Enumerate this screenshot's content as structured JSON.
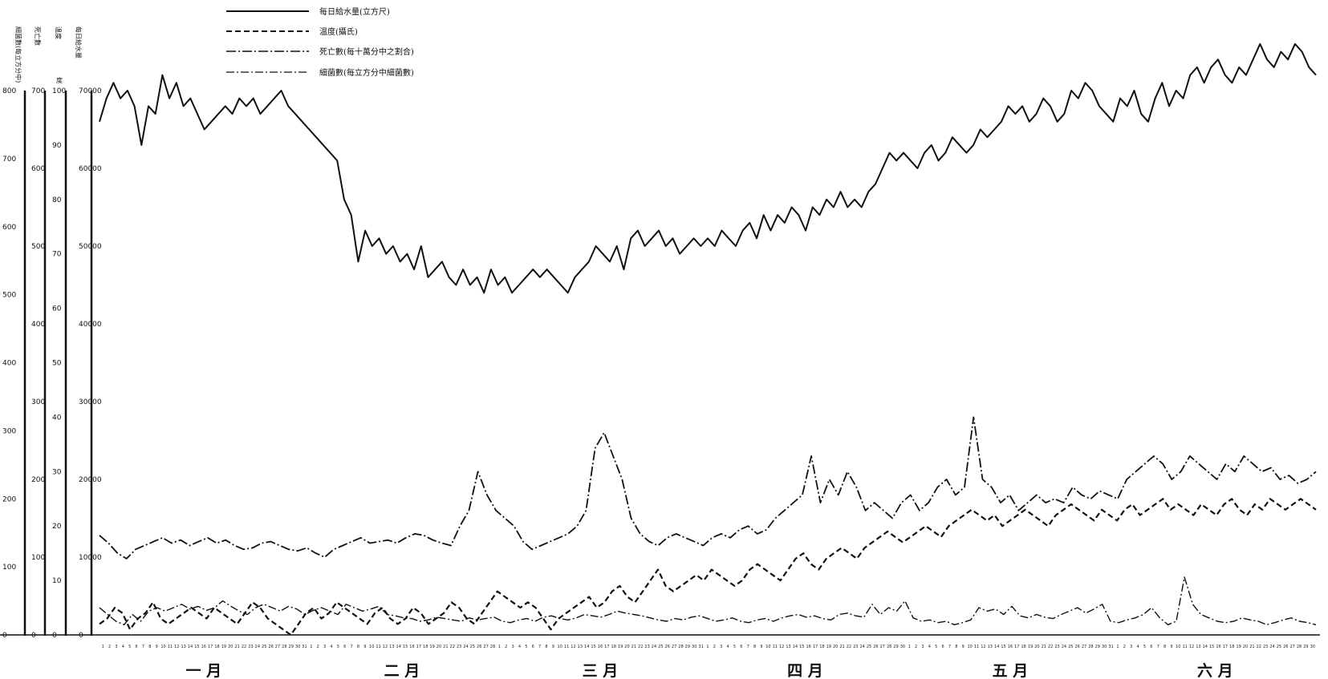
{
  "chart_data": {
    "type": "line",
    "title": "",
    "xlabel": "",
    "ylabel": "",
    "grid": false,
    "legend_position": "top-left",
    "month_labels": [
      "一 月",
      "二 月",
      "三 月",
      "四 月",
      "五 月",
      "六 月"
    ],
    "days_per_month": [
      31,
      28,
      31,
      30,
      31,
      30
    ],
    "y_axes": [
      {
        "title": "細菌數(每立方分中)",
        "ticks": [
          "800",
          "700",
          "600",
          "500",
          "400",
          "300",
          "200",
          "100",
          "0"
        ]
      },
      {
        "title": "死亡數",
        "ticks": [
          "700",
          "600",
          "500",
          "400",
          "300",
          "200",
          "100",
          "0"
        ]
      },
      {
        "title": "溫度",
        "unit": "度",
        "ticks": [
          "100",
          "90",
          "80",
          "70",
          "60",
          "50",
          "40",
          "30",
          "20",
          "10",
          "0"
        ]
      },
      {
        "title": "每日給水量",
        "ticks": [
          "70000",
          "60000",
          "50000",
          "40000",
          "30000",
          "20000",
          "10000",
          "0"
        ]
      }
    ],
    "series": [
      {
        "name": "每日給水量(立方尺)",
        "style": "solid",
        "axis": 3,
        "values": [
          66000,
          69000,
          71000,
          69000,
          70000,
          68000,
          63000,
          68000,
          67000,
          72000,
          69000,
          71000,
          68000,
          69000,
          67000,
          65000,
          66000,
          67000,
          68000,
          67000,
          69000,
          68000,
          69000,
          67000,
          68000,
          69000,
          70000,
          68000,
          67000,
          66000,
          65000,
          64000,
          63000,
          62000,
          61000,
          56000,
          54000,
          48000,
          52000,
          50000,
          51000,
          49000,
          50000,
          48000,
          49000,
          47000,
          50000,
          46000,
          47000,
          48000,
          46000,
          45000,
          47000,
          45000,
          46000,
          44000,
          47000,
          45000,
          46000,
          44000,
          45000,
          46000,
          47000,
          46000,
          47000,
          46000,
          45000,
          44000,
          46000,
          47000,
          48000,
          50000,
          49000,
          48000,
          50000,
          47000,
          51000,
          52000,
          50000,
          51000,
          52000,
          50000,
          51000,
          49000,
          50000,
          51000,
          50000,
          51000,
          50000,
          52000,
          51000,
          50000,
          52000,
          53000,
          51000,
          54000,
          52000,
          54000,
          53000,
          55000,
          54000,
          52000,
          55000,
          54000,
          56000,
          55000,
          57000,
          55000,
          56000,
          55000,
          57000,
          58000,
          60000,
          62000,
          61000,
          62000,
          61000,
          60000,
          62000,
          63000,
          61000,
          62000,
          64000,
          63000,
          62000,
          63000,
          65000,
          64000,
          65000,
          66000,
          68000,
          67000,
          68000,
          66000,
          67000,
          69000,
          68000,
          66000,
          67000,
          70000,
          69000,
          71000,
          70000,
          68000,
          67000,
          66000,
          69000,
          68000,
          70000,
          67000,
          66000,
          69000,
          71000,
          68000,
          70000,
          69000,
          72000,
          73000,
          71000,
          73000,
          74000,
          72000,
          71000,
          73000,
          72000,
          74000,
          76000,
          74000,
          73000,
          75000,
          74000,
          76000,
          75000,
          73000,
          72000
        ]
      },
      {
        "name": "温度(攝氏)",
        "style": "dashed",
        "axis": 2,
        "values": [
          2,
          3,
          5,
          4,
          1,
          3,
          4,
          6,
          3,
          2,
          3,
          4,
          5,
          4,
          3,
          5,
          4,
          3,
          2,
          4,
          6,
          5,
          3,
          2,
          1,
          0,
          2,
          4,
          5,
          3,
          4,
          6,
          5,
          4,
          3,
          2,
          4,
          5,
          3,
          2,
          3,
          5,
          4,
          2,
          3,
          4,
          6,
          5,
          3,
          2,
          4,
          6,
          8,
          7,
          6,
          5,
          6,
          5,
          3,
          1,
          3,
          4,
          5,
          6,
          7,
          5,
          6,
          8,
          9,
          7,
          6,
          8,
          10,
          12,
          9,
          8,
          9,
          10,
          11,
          10,
          12,
          11,
          10,
          9,
          10,
          12,
          13,
          12,
          11,
          10,
          12,
          14,
          15,
          13,
          12,
          14,
          15,
          16,
          15,
          14,
          16,
          17,
          18,
          19,
          18,
          17,
          18,
          19,
          20,
          19,
          18,
          20,
          21,
          22,
          23,
          22,
          21,
          22,
          20,
          21,
          22,
          23,
          22,
          21,
          20,
          22,
          23,
          24,
          23,
          22,
          21,
          23,
          22,
          21,
          23,
          24,
          22,
          23,
          24,
          25,
          23,
          24,
          23,
          22,
          24,
          23,
          22,
          24,
          25,
          23,
          22,
          24,
          23,
          25,
          24,
          23,
          24,
          25,
          24,
          23
        ]
      },
      {
        "name": "死亡數(每十萬分中之割合)",
        "style": "dashdot",
        "axis": 1,
        "values": [
          128,
          118,
          105,
          98,
          110,
          115,
          120,
          125,
          118,
          122,
          115,
          120,
          125,
          118,
          122,
          115,
          110,
          112,
          118,
          120,
          115,
          110,
          108,
          112,
          105,
          100,
          110,
          115,
          120,
          125,
          118,
          120,
          122,
          118,
          125,
          130,
          128,
          122,
          118,
          115,
          140,
          160,
          210,
          180,
          160,
          150,
          140,
          120,
          110,
          115,
          120,
          125,
          130,
          140,
          160,
          240,
          260,
          230,
          200,
          150,
          130,
          120,
          115,
          125,
          130,
          125,
          120,
          115,
          125,
          130,
          125,
          135,
          140,
          130,
          135,
          150,
          160,
          170,
          180,
          230,
          170,
          200,
          180,
          210,
          190,
          160,
          170,
          160,
          150,
          170,
          180,
          160,
          170,
          190,
          200,
          180,
          190,
          280,
          200,
          190,
          170,
          180,
          160,
          170,
          180,
          170,
          175,
          170,
          190,
          180,
          175,
          185,
          180,
          175,
          200,
          210,
          220,
          230,
          220,
          200,
          210,
          230,
          220,
          210,
          200,
          220,
          210,
          230,
          220,
          210,
          215,
          200,
          205,
          195,
          200,
          210
        ]
      },
      {
        "name": "細菌數(每立方分中細菌數)",
        "style": "dashdot-thin",
        "axis": 0,
        "values": [
          40,
          30,
          20,
          15,
          30,
          20,
          35,
          40,
          35,
          40,
          45,
          38,
          42,
          36,
          40,
          50,
          42,
          35,
          30,
          40,
          45,
          40,
          35,
          42,
          38,
          30,
          36,
          40,
          35,
          30,
          45,
          40,
          35,
          38,
          42,
          30,
          28,
          25,
          24,
          20,
          22,
          26,
          24,
          22,
          20,
          25,
          22,
          24,
          26,
          20,
          18,
          22,
          24,
          20,
          26,
          28,
          24,
          22,
          25,
          30,
          28,
          26,
          30,
          35,
          32,
          30,
          28,
          25,
          22,
          20,
          24,
          22,
          26,
          28,
          24,
          20,
          22,
          25,
          20,
          18,
          22,
          24,
          20,
          25,
          28,
          30,
          26,
          28,
          24,
          22,
          30,
          32,
          28,
          26,
          45,
          30,
          40,
          35,
          50,
          25,
          20,
          22,
          18,
          20,
          15,
          18,
          22,
          40,
          35,
          38,
          30,
          42,
          28,
          25,
          30,
          26,
          24,
          30,
          35,
          40,
          32,
          38,
          45,
          20,
          18,
          22,
          25,
          30,
          40,
          25,
          15,
          20,
          85,
          45,
          30,
          25,
          20,
          18,
          20,
          25,
          22,
          20,
          15,
          18,
          22,
          25,
          20,
          18,
          15
        ]
      }
    ]
  }
}
